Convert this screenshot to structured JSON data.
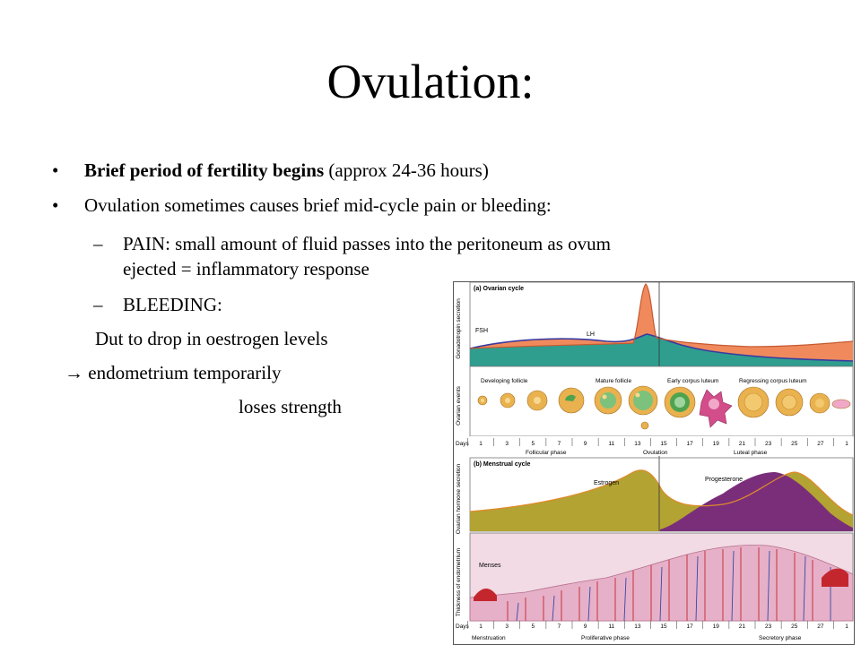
{
  "slide": {
    "title": "Ovulation:",
    "bullet1_bold": "Brief period of fertility begins",
    "bullet1_rest": " (approx 24-36 hours)",
    "bullet2": "Ovulation sometimes causes brief mid-cycle pain or bleeding:",
    "sub1_line1": "PAIN: small amount of fluid passes into the peritoneum as ovum",
    "sub1_line2": "ejected = inflammatory response",
    "sub2": "BLEEDING:",
    "text1": "Dut to drop in oestrogen levels",
    "text2": "endometrium temporarily",
    "text3": "loses strength",
    "arrow": "→",
    "bullet_char": "•",
    "dash_char": "–"
  },
  "figure": {
    "panel_a_title": "(a) Ovarian cycle",
    "panel_a_axis": "Gonadotropin secretion",
    "fsh_label": "FSH",
    "lh_label": "LH",
    "events_axis": "Ovarian events",
    "developing_follicle": "Developing follicle",
    "mature_follicle": "Mature follicle",
    "early_corpus_luteum": "Early corpus luteum",
    "regressing_corpus_luteum": "Regressing corpus luteum",
    "days_label": "Days",
    "days": [
      "1",
      "3",
      "5",
      "7",
      "9",
      "11",
      "13",
      "15",
      "17",
      "19",
      "21",
      "23",
      "25",
      "27",
      "1"
    ],
    "follicular_phase": "Follicular phase",
    "ovulation_label": "Ovulation",
    "luteal_phase": "Luteal phase",
    "panel_b_title": "(b) Menstrual cycle",
    "panel_b_axis": "Ovarian hormone secretion",
    "estrogen_label": "Estrogen",
    "progesterone_label": "Progesterone",
    "endometrium_axis": "Thickness of endometrium",
    "menses_label": "Menses",
    "menstruation_phase": "Menstruation",
    "proliferative_phase": "Proliferative phase",
    "secretory_phase": "Secretory phase",
    "colors": {
      "fsh_fill": "#2f9e8f",
      "lh_fill": "#f08a5d",
      "fsh_line": "#3a3aa0",
      "estrogen_fill": "#b3a332",
      "progesterone_fill": "#7a2e7a",
      "endometrium": "#e6b0c8",
      "vessel_red": "#c4262e",
      "vessel_blue": "#3548a8",
      "follicle": "#e9b24f"
    }
  }
}
